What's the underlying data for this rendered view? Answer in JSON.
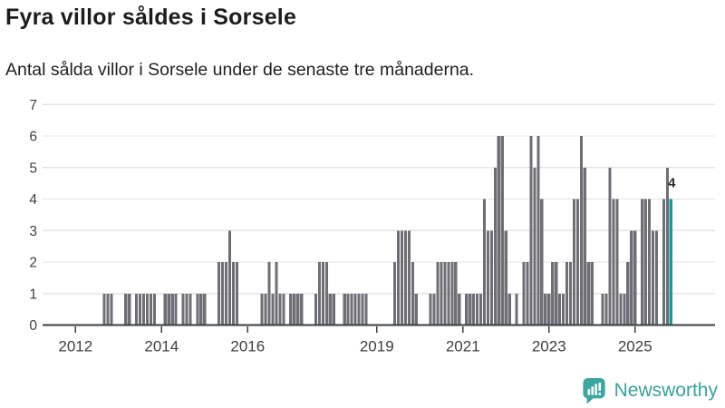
{
  "title": "Fyra villor såldes i Sorsele",
  "subtitle": "Antal sålda villor i Sorsele under de senaste tre månaderna.",
  "annotation": {
    "label": "4"
  },
  "branding": {
    "name": "Newsworthy",
    "icon": "bar-chart-speech-bubble-icon"
  },
  "colors": {
    "bar": "#6e6e76",
    "highlight": "#169a96",
    "grid": "#e4e4e4",
    "axis": "#3a3e41",
    "tick_text": "#3f3f3f",
    "title_text": "#1c1c1a",
    "annotation_text": "#2e2e2e",
    "brand": "#38a39b"
  },
  "chart_data": {
    "type": "bar",
    "title": "Fyra villor såldes i Sorsele",
    "subtitle": "Antal sålda villor i Sorsele under de senaste tre månaderna.",
    "xlabel": "",
    "ylabel": "",
    "ylim": [
      0,
      7
    ],
    "yticks": [
      0,
      1,
      2,
      3,
      4,
      5,
      6,
      7
    ],
    "xtick_years": [
      2012,
      2014,
      2016,
      2019,
      2021,
      2023,
      2025
    ],
    "grid": true,
    "legend": false,
    "start_month": "2012-01",
    "end_month": "2025-11",
    "highlight_last_bar": true,
    "last_bar_value": 4,
    "monthly_values": [
      0,
      0,
      0,
      0,
      0,
      0,
      0,
      0,
      1,
      1,
      1,
      0,
      0,
      0,
      1,
      1,
      0,
      1,
      1,
      1,
      1,
      1,
      1,
      0,
      0,
      1,
      1,
      1,
      1,
      0,
      1,
      1,
      1,
      0,
      1,
      1,
      1,
      0,
      0,
      0,
      2,
      2,
      2,
      3,
      2,
      2,
      0,
      0,
      0,
      0,
      0,
      0,
      1,
      1,
      2,
      1,
      2,
      1,
      1,
      0,
      1,
      1,
      1,
      1,
      0,
      0,
      0,
      1,
      2,
      2,
      2,
      1,
      1,
      0,
      0,
      1,
      1,
      1,
      1,
      1,
      1,
      1,
      0,
      0,
      0,
      0,
      0,
      0,
      0,
      2,
      3,
      3,
      3,
      3,
      2,
      1,
      0,
      0,
      0,
      1,
      1,
      2,
      2,
      2,
      2,
      2,
      2,
      1,
      0,
      1,
      1,
      1,
      1,
      1,
      4,
      3,
      3,
      5,
      6,
      6,
      3,
      1,
      0,
      1,
      0,
      2,
      2,
      6,
      5,
      6,
      4,
      1,
      1,
      2,
      2,
      1,
      1,
      2,
      2,
      4,
      4,
      6,
      5,
      2,
      2,
      0,
      0,
      1,
      1,
      5,
      4,
      4,
      1,
      1,
      2,
      3,
      3,
      0,
      4,
      4,
      4,
      3,
      3,
      0,
      4,
      5,
      4
    ]
  }
}
